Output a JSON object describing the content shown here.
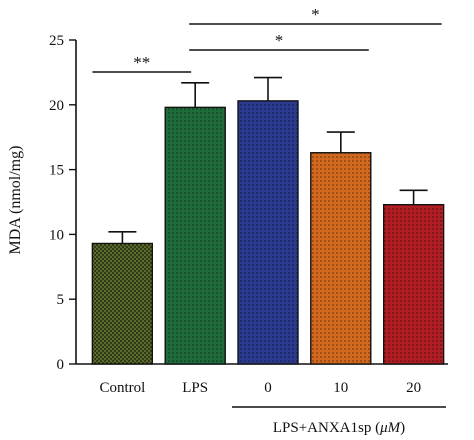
{
  "chart_data": {
    "type": "bar",
    "categories": [
      "Control",
      "LPS",
      "0",
      "10",
      "20"
    ],
    "values": [
      9.3,
      19.8,
      20.3,
      16.3,
      12.3
    ],
    "errors": [
      0.9,
      1.9,
      1.8,
      1.6,
      1.1
    ],
    "colors": [
      "#5a6a2a",
      "#1f6b3a",
      "#2c3a8f",
      "#d2691e",
      "#b01e23"
    ],
    "ylabel": "MDA (nmol/mg)",
    "ylim": [
      0,
      25
    ],
    "yticks": [
      0,
      5,
      10,
      15,
      20,
      25
    ],
    "group_label": "LPS+ANXA1sp (μM)",
    "group_label_parts": {
      "pre": "LPS+ANXA1sp (",
      "unit": "μ",
      "post": "M)"
    },
    "group_categories": [
      "0",
      "10",
      "20"
    ],
    "significance": [
      {
        "from": "Control",
        "to": "LPS",
        "label": "**"
      },
      {
        "from": "LPS",
        "to": "10",
        "label": "*"
      },
      {
        "from": "LPS",
        "to": "20",
        "label": "*"
      }
    ],
    "grid": false,
    "legend": "none"
  }
}
